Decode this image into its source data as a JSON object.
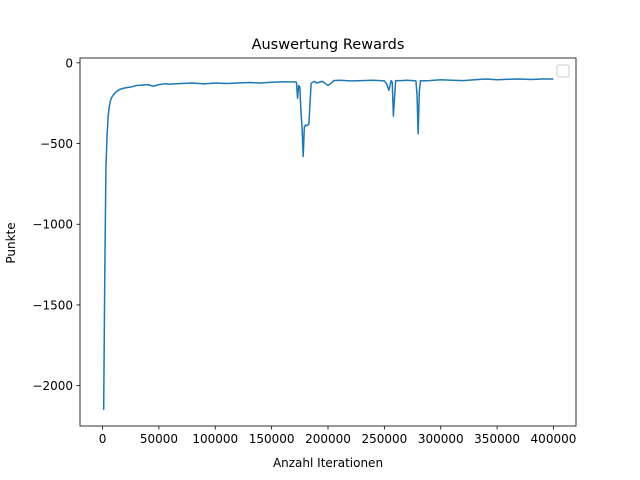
{
  "chart_data": {
    "type": "line",
    "title": "Auswertung Rewards",
    "xlabel": "Anzahl Iterationen",
    "ylabel": "Punkte",
    "xlim": [
      -20000,
      420000
    ],
    "ylim": [
      -2250,
      30
    ],
    "xticks": [
      0,
      50000,
      100000,
      150000,
      200000,
      250000,
      300000,
      350000,
      400000
    ],
    "xtick_labels": [
      "0",
      "50000",
      "100000",
      "150000",
      "200000",
      "250000",
      "300000",
      "350000",
      "400000"
    ],
    "yticks": [
      0,
      -500,
      -1000,
      -1500,
      -2000
    ],
    "ytick_labels": [
      "0",
      "−500",
      "−1000",
      "−1500",
      "−2000"
    ],
    "grid": false,
    "legend": "top-right (empty box)",
    "colors": {
      "line": "#1f77b4",
      "axes": "#000000",
      "background": "#ffffff"
    },
    "series": [
      {
        "x": [
          1000,
          2000,
          3000,
          4000,
          5000,
          6000,
          7000,
          8000,
          10000,
          12000,
          15000,
          20000,
          25000,
          30000,
          35000,
          40000,
          45000,
          50000,
          55000,
          60000,
          70000,
          80000,
          90000,
          100000,
          110000,
          120000,
          130000,
          140000,
          150000,
          160000,
          170000,
          172000,
          173000,
          174000,
          175000,
          176000,
          177000,
          178000,
          179000,
          180000,
          181000,
          183000,
          185000,
          186000,
          188000,
          190000,
          195000,
          200000,
          203000,
          205000,
          210000,
          220000,
          230000,
          240000,
          250000,
          252000,
          254000,
          255000,
          256000,
          257000,
          258000,
          260000,
          265000,
          270000,
          275000,
          278000,
          279000,
          280000,
          281000,
          282000,
          284000,
          290000,
          300000,
          310000,
          320000,
          330000,
          340000,
          350000,
          360000,
          370000,
          380000,
          390000,
          400000
        ],
        "y": [
          -2150,
          -1300,
          -650,
          -450,
          -330,
          -270,
          -235,
          -215,
          -195,
          -180,
          -165,
          -155,
          -150,
          -140,
          -138,
          -135,
          -145,
          -135,
          -130,
          -132,
          -128,
          -125,
          -130,
          -125,
          -128,
          -125,
          -122,
          -125,
          -120,
          -118,
          -118,
          -120,
          -220,
          -140,
          -150,
          -300,
          -400,
          -580,
          -400,
          -385,
          -390,
          -380,
          -130,
          -120,
          -115,
          -125,
          -115,
          -140,
          -125,
          -110,
          -108,
          -112,
          -110,
          -108,
          -112,
          -130,
          -170,
          -140,
          -110,
          -120,
          -330,
          -110,
          -110,
          -108,
          -110,
          -112,
          -200,
          -440,
          -180,
          -110,
          -112,
          -110,
          -105,
          -108,
          -110,
          -105,
          -100,
          -105,
          -102,
          -100,
          -103,
          -100,
          -100
        ]
      }
    ]
  }
}
